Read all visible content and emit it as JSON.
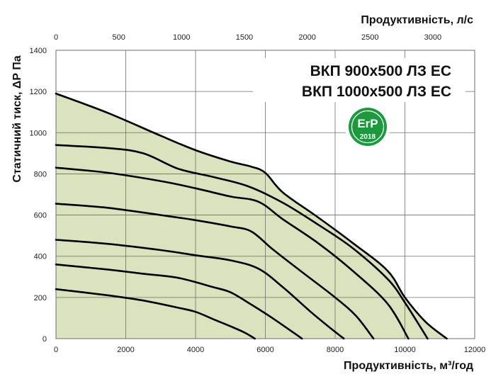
{
  "chart_data": {
    "type": "line",
    "title_lines": [
      "ВКП 900х500 ЛЗ ЕС",
      "ВКП 1000х500 ЛЗ ЕС"
    ],
    "xlabel": "Продуктивність, м³/год",
    "x2label": "Продуктивність, л/с",
    "ylabel": "Статичний тиск, ΔP Па",
    "xlim": [
      0,
      12000
    ],
    "x2lim": [
      0,
      3333.3
    ],
    "ylim": [
      0,
      1400
    ],
    "xticks": [
      0,
      2000,
      4000,
      6000,
      8000,
      10000,
      12000
    ],
    "x2ticks": [
      0,
      500,
      1000,
      1500,
      2000,
      2500,
      3000
    ],
    "yticks": [
      0,
      200,
      400,
      600,
      800,
      1000,
      1200,
      1400
    ],
    "grid": true,
    "colors": {
      "area": "#d9e3bd",
      "curve": "#000000",
      "grid": "#6d6d6d",
      "erp_badge": "#1a9a3c"
    },
    "badge": {
      "top": "ErP",
      "bottom": "2018"
    },
    "series": [
      {
        "x": [
          0,
          1500,
          3000,
          4000,
          5000,
          5600,
          6000,
          6500,
          7500,
          8500,
          9500,
          10000,
          10600,
          11200
        ],
        "y": [
          1190,
          1095,
          985,
          915,
          860,
          835,
          805,
          710,
          590,
          465,
          330,
          200,
          80,
          0
        ]
      },
      {
        "x": [
          0,
          1500,
          2500,
          3500,
          4500,
          5500,
          6500,
          7500,
          8500,
          9500,
          10000,
          10650
        ],
        "y": [
          940,
          925,
          900,
          825,
          785,
          740,
          660,
          555,
          440,
          290,
          175,
          0
        ]
      },
      {
        "x": [
          0,
          1500,
          3000,
          4000,
          5000,
          5800,
          6500,
          7500,
          8500,
          9500,
          10100
        ],
        "y": [
          830,
          805,
          765,
          730,
          690,
          665,
          580,
          465,
          330,
          170,
          0
        ]
      },
      {
        "x": [
          0,
          1500,
          3000,
          4000,
          5000,
          5600,
          6200,
          7000,
          8000,
          8600,
          9100
        ],
        "y": [
          655,
          635,
          600,
          575,
          545,
          520,
          435,
          330,
          200,
          110,
          0
        ]
      },
      {
        "x": [
          0,
          1500,
          3000,
          4000,
          5000,
          5800,
          6500,
          7300,
          7800,
          8250
        ],
        "y": [
          480,
          460,
          430,
          405,
          380,
          340,
          250,
          130,
          60,
          0
        ]
      },
      {
        "x": [
          0,
          1500,
          2500,
          3500,
          4500,
          5000,
          5600,
          6200,
          6800,
          7050
        ],
        "y": [
          360,
          335,
          315,
          295,
          250,
          225,
          165,
          100,
          30,
          0
        ]
      },
      {
        "x": [
          0,
          1500,
          2500,
          3500,
          4000,
          4500,
          5000,
          5400,
          5700
        ],
        "y": [
          240,
          210,
          185,
          150,
          130,
          95,
          60,
          30,
          0
        ]
      }
    ]
  }
}
